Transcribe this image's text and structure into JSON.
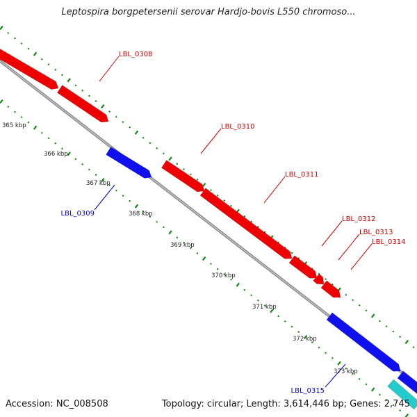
{
  "title": "Leptospira borgpetersenii serovar Hardjo-bovis L550 chromoso...",
  "accession_text": "Accession: NC_008508",
  "summary_text": "Topology: circular; Length: 3,614,446 bp; Genes: 2,745",
  "colors": {
    "forward_gene": "#ee0000",
    "reverse_gene": "#1010ee",
    "reverse_gene_light": "#22cccc",
    "backbone": "#8a8a8a",
    "tick": "#118811",
    "forward_label": "#cc0000",
    "reverse_label": "#0000cc"
  },
  "ruler_labels": [
    "365 kbp",
    "366 kbp",
    "367 kbp",
    "368 kbp",
    "369 kbp",
    "370 kbp",
    "371 kbp",
    "372 kbp",
    "373 kbp"
  ],
  "genes": [
    {
      "name": "LBL_0308",
      "strand": "forward",
      "color": "red"
    },
    {
      "name": "LBL_0310",
      "strand": "forward",
      "color": "red"
    },
    {
      "name": "LBL_0311",
      "strand": "forward",
      "color": "red"
    },
    {
      "name": "LBL_0312",
      "strand": "forward",
      "color": "red"
    },
    {
      "name": "LBL_0313",
      "strand": "forward",
      "color": "red"
    },
    {
      "name": "LBL_0314",
      "strand": "forward",
      "color": "red"
    },
    {
      "name": "LBL_0309",
      "strand": "reverse",
      "color": "blue"
    },
    {
      "name": "LBL_0315",
      "strand": "reverse",
      "color": "blue"
    }
  ]
}
